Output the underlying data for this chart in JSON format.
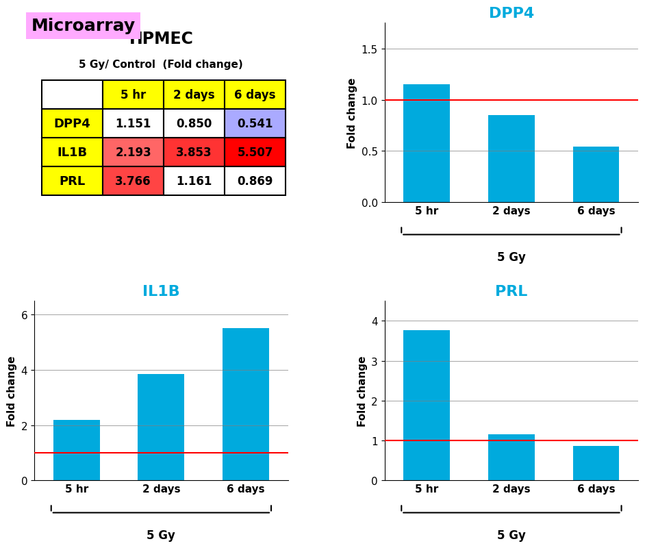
{
  "title_label": "Microarray",
  "title_bg": "#ffaaff",
  "hpmec_title": "HPMEC",
  "table_subtitle": "5 Gy/ Control  (Fold change)",
  "col_headers": [
    "5 hr",
    "2 days",
    "6 days"
  ],
  "row_headers": [
    "DPP4",
    "IL1B",
    "PRL"
  ],
  "table_values": [
    [
      1.151,
      0.85,
      0.541
    ],
    [
      2.193,
      3.853,
      5.507
    ],
    [
      3.766,
      1.161,
      0.869
    ]
  ],
  "header_row_bg": "#ffff00",
  "row_header_bg": "#ffff00",
  "cell_colors": [
    [
      "#ffffff",
      "#ffffff",
      "#aaaaff"
    ],
    [
      "#ff6666",
      "#ff3333",
      "#ff0000"
    ],
    [
      "#ff4444",
      "#ffffff",
      "#ffffff"
    ]
  ],
  "bar_color": "#00aadd",
  "red_line_y": 1.0,
  "red_line_color": "#ff0000",
  "x_labels": [
    "5 hr",
    "2 days",
    "6 days"
  ],
  "x_group_label": "5 Gy",
  "ylabel": "Fold change",
  "DPP4_values": [
    1.151,
    0.85,
    0.541
  ],
  "DPP4_ylim": [
    0,
    1.75
  ],
  "DPP4_yticks": [
    0.0,
    0.5,
    1.0,
    1.5
  ],
  "IL1B_values": [
    2.193,
    3.853,
    5.507
  ],
  "IL1B_ylim": [
    0,
    6.5
  ],
  "IL1B_yticks": [
    0,
    2,
    4,
    6
  ],
  "PRL_values": [
    3.766,
    1.161,
    0.869
  ],
  "PRL_ylim": [
    0,
    4.5
  ],
  "PRL_yticks": [
    0,
    1,
    2,
    3,
    4
  ],
  "chart_title_color": "#00aadd",
  "chart_titles": [
    "DPP4",
    "IL1B",
    "PRL"
  ]
}
